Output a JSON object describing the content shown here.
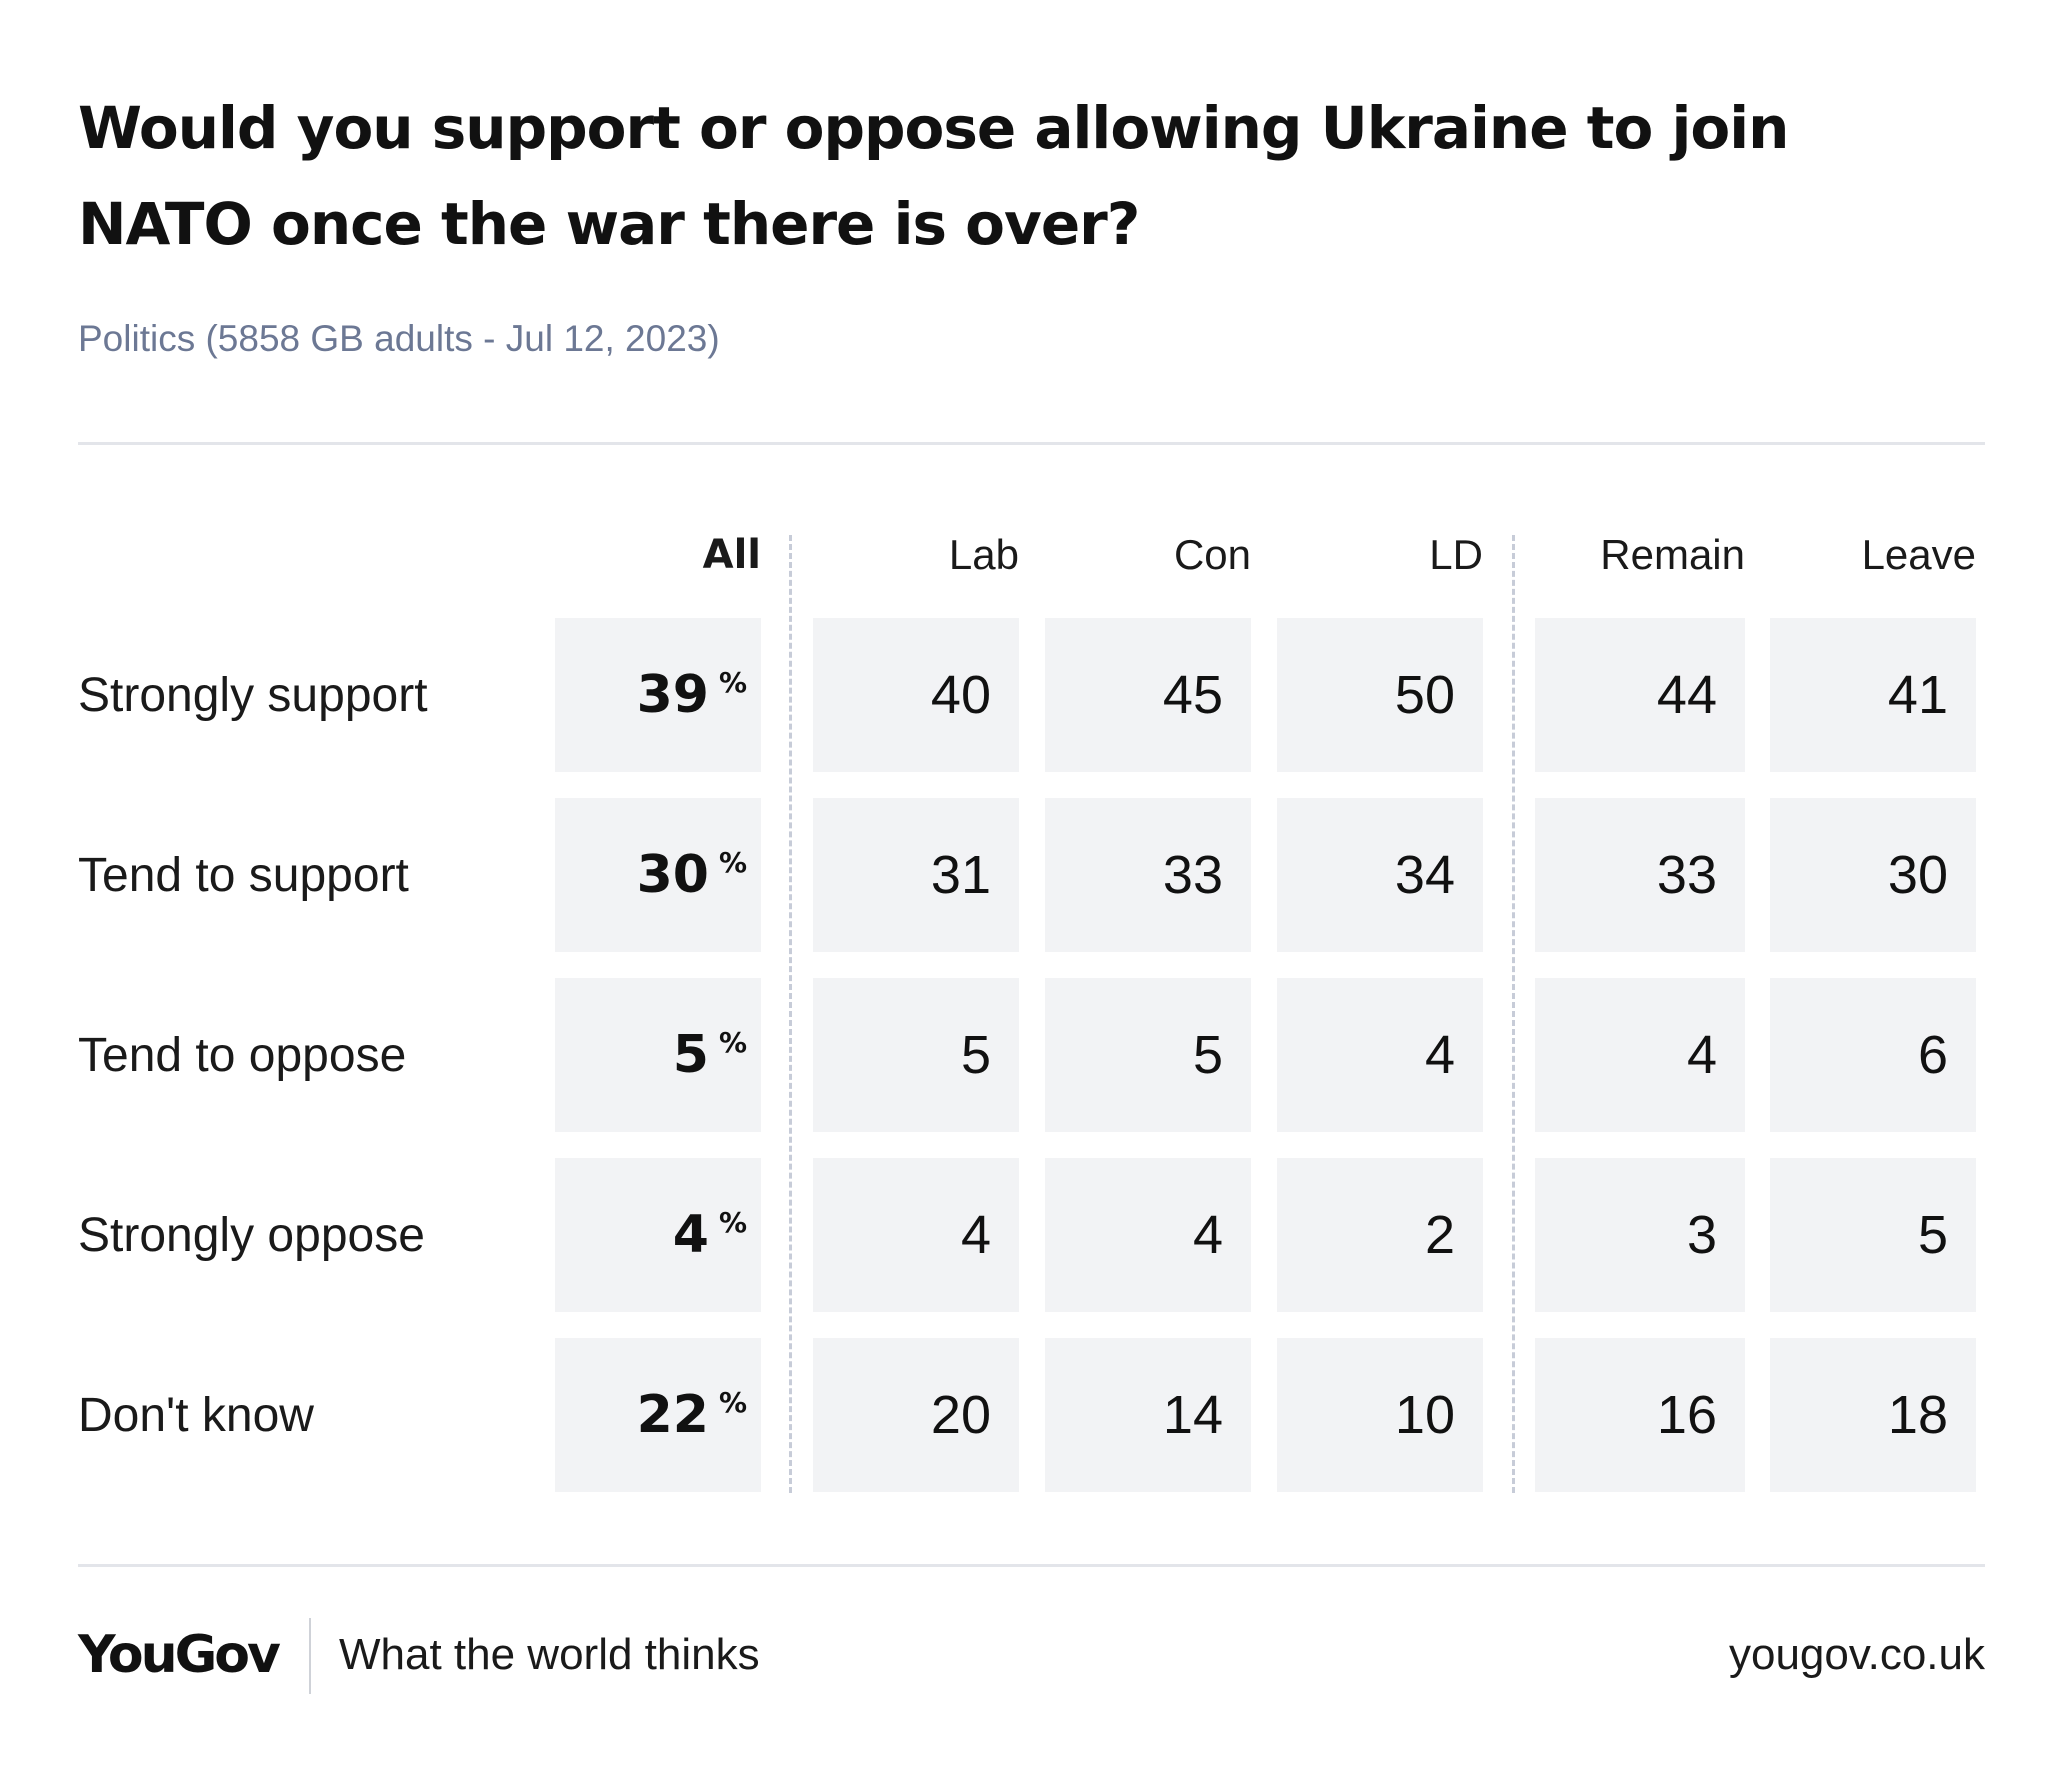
{
  "title": "Would you support or oppose allowing Ukraine to join NATO once the war there is over?",
  "subtitle": "Politics (5858 GB adults - Jul 12, 2023)",
  "footer": {
    "brand": "YouGov",
    "tagline": "What the world thinks",
    "url": "yougov.co.uk"
  },
  "chart_data": {
    "type": "table",
    "title": "Would you support or oppose allowing Ukraine to join NATO once the war there is over?",
    "subtitle": "Politics (5858 GB adults - Jul 12, 2023)",
    "columns": [
      "All",
      "Lab",
      "Con",
      "LD",
      "Remain",
      "Leave"
    ],
    "unit_symbol": "%",
    "rows": [
      {
        "label": "Strongly support",
        "values": [
          39,
          40,
          45,
          50,
          44,
          41
        ]
      },
      {
        "label": "Tend to support",
        "values": [
          30,
          31,
          33,
          34,
          33,
          30
        ]
      },
      {
        "label": "Tend to oppose",
        "values": [
          5,
          5,
          5,
          4,
          4,
          6
        ]
      },
      {
        "label": "Strongly oppose",
        "values": [
          4,
          4,
          4,
          2,
          3,
          5
        ]
      },
      {
        "label": "Don't know",
        "values": [
          22,
          20,
          14,
          10,
          16,
          18
        ]
      }
    ],
    "colors": {
      "cell_background": "#f2f3f5",
      "subtitle": "#6c7894",
      "separator": "#c7ccd8",
      "rule": "#e3e5ea"
    }
  }
}
